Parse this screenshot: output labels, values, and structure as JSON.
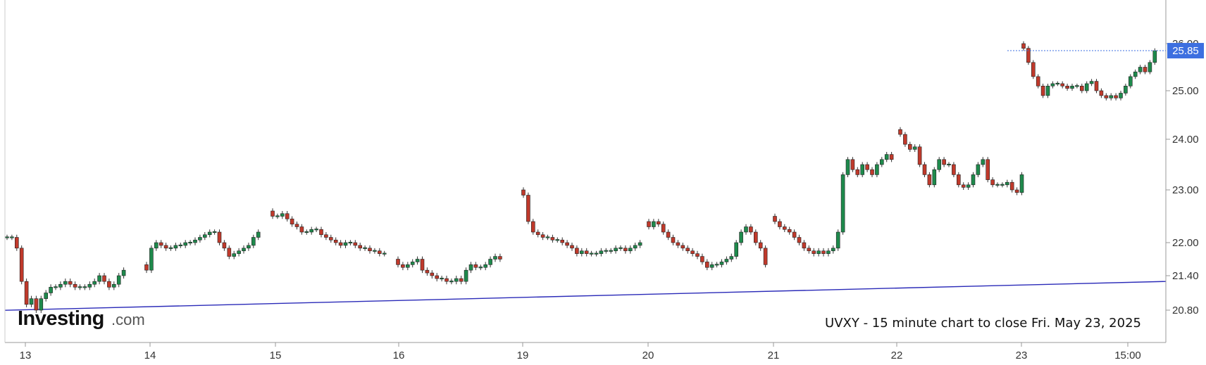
{
  "chart_data": {
    "type": "candlestick",
    "caption": "UVXY - 15 minute chart to close Fri. May 23, 2025",
    "logo": {
      "main": "Investing",
      "suffix": ".com"
    },
    "x_ticks": [
      "13",
      "14",
      "15",
      "16",
      "19",
      "20",
      "21",
      "22",
      "23",
      "15:00"
    ],
    "y_ticks": [
      "26.00",
      "25.00",
      "24.00",
      "23.00",
      "22.00",
      "21.40",
      "20.80"
    ],
    "last_price": "25.85",
    "colors": {
      "up": "#1e8a4c",
      "down": "#c0392b",
      "trendline": "#2a2ab8",
      "price_tag": "#3d6fe0",
      "grid": "#dddddd",
      "axis": "#999999"
    },
    "trendline": {
      "from": {
        "day": "13",
        "value": 20.7
      },
      "to": {
        "day": "23",
        "value": 21.3
      }
    },
    "sessions": [
      {
        "day": "13",
        "closes": [
          22.1,
          22.1,
          21.9,
          21.3,
          20.9,
          21.0,
          20.8,
          21.0,
          21.1,
          21.2,
          21.2,
          21.25,
          21.3,
          21.25,
          21.2,
          21.2,
          21.2,
          21.25,
          21.3,
          21.4,
          21.3,
          21.2,
          21.25,
          21.4,
          21.5
        ]
      },
      {
        "day": "14",
        "closes": [
          21.5,
          21.9,
          22.0,
          21.95,
          21.9,
          21.9,
          21.95,
          21.95,
          22.0,
          22.0,
          22.05,
          22.1,
          22.15,
          22.2,
          22.2,
          22.0,
          21.9,
          21.75,
          21.8,
          21.85,
          21.9,
          21.95,
          22.1,
          22.2
        ]
      },
      {
        "day": "15",
        "closes": [
          22.5,
          22.5,
          22.55,
          22.45,
          22.35,
          22.3,
          22.2,
          22.2,
          22.25,
          22.25,
          22.15,
          22.1,
          22.05,
          22.0,
          21.95,
          22.0,
          22.0,
          21.95,
          21.9,
          21.9,
          21.85,
          21.85,
          21.8,
          21.8
        ]
      },
      {
        "day": "16",
        "closes": [
          21.6,
          21.55,
          21.6,
          21.65,
          21.7,
          21.5,
          21.45,
          21.4,
          21.35,
          21.35,
          21.3,
          21.3,
          21.35,
          21.3,
          21.5,
          21.6,
          21.55,
          21.55,
          21.6,
          21.7,
          21.75,
          21.7
        ]
      },
      {
        "day": "19",
        "closes": [
          22.9,
          22.4,
          22.2,
          22.15,
          22.1,
          22.1,
          22.05,
          22.05,
          22.0,
          21.95,
          21.9,
          21.8,
          21.85,
          21.8,
          21.8,
          21.8,
          21.85,
          21.85,
          21.85,
          21.9,
          21.9,
          21.85,
          21.9,
          21.95,
          22.0
        ]
      },
      {
        "day": "20",
        "closes": [
          22.3,
          22.4,
          22.35,
          22.2,
          22.1,
          22.0,
          21.95,
          21.9,
          21.85,
          21.8,
          21.75,
          21.65,
          21.55,
          21.6,
          21.6,
          21.65,
          21.7,
          21.75,
          22.0,
          22.2,
          22.3,
          22.2,
          22.0,
          21.9,
          21.6
        ]
      },
      {
        "day": "21",
        "closes": [
          22.4,
          22.3,
          22.25,
          22.2,
          22.1,
          22.0,
          21.9,
          21.85,
          21.8,
          21.85,
          21.8,
          21.85,
          21.9,
          22.2,
          23.3,
          23.6,
          23.4,
          23.3,
          23.5,
          23.4,
          23.3,
          23.5,
          23.6,
          23.7,
          23.6
        ]
      },
      {
        "day": "22",
        "closes": [
          24.1,
          23.9,
          23.8,
          23.85,
          23.5,
          23.3,
          23.1,
          23.4,
          23.6,
          23.5,
          23.5,
          23.3,
          23.1,
          23.05,
          23.1,
          23.3,
          23.5,
          23.6,
          23.2,
          23.1,
          23.1,
          23.1,
          23.15,
          23.0,
          22.95,
          23.3
        ]
      },
      {
        "day": "23",
        "closes": [
          25.9,
          25.6,
          25.3,
          25.1,
          24.9,
          25.1,
          25.15,
          25.15,
          25.1,
          25.05,
          25.1,
          25.1,
          25.0,
          25.15,
          25.2,
          25.0,
          24.9,
          24.85,
          24.9,
          24.85,
          24.95,
          25.1,
          25.3,
          25.4,
          25.5,
          25.4,
          25.6,
          25.85
        ]
      }
    ]
  }
}
